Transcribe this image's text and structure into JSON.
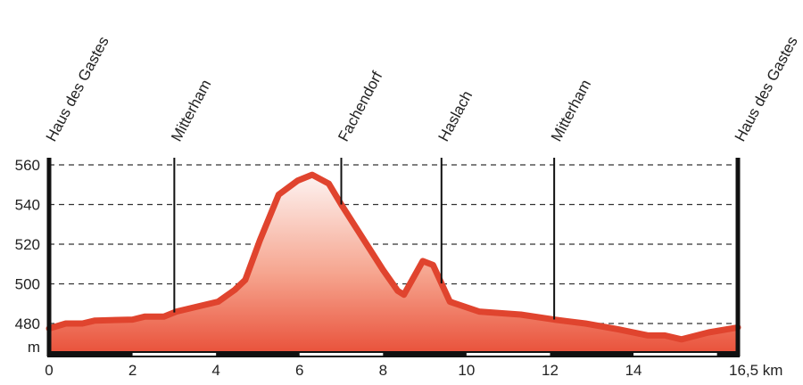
{
  "chart_data": {
    "type": "area",
    "title": "",
    "xlabel": "",
    "x_unit": "km",
    "ylabel": "m",
    "xlim": [
      0,
      16.5
    ],
    "ylim": [
      464,
      562
    ],
    "x_ticks": [
      0,
      2,
      4,
      6,
      8,
      10,
      12,
      14,
      16.5
    ],
    "x_tick_labels": [
      "0",
      "2",
      "4",
      "6",
      "8",
      "10",
      "12",
      "14",
      "16,5 km"
    ],
    "y_ticks": [
      480,
      500,
      520,
      540,
      560
    ],
    "y_tick_labels": [
      "480",
      "500",
      "520",
      "540",
      "560"
    ],
    "grid": "horizontal dashed",
    "line_color": "#e0442e",
    "fill_top_color": "#fdf3f1",
    "fill_bottom_color": "#e9513a",
    "waypoints": [
      {
        "km": 0,
        "name": "Haus des Gastes"
      },
      {
        "km": 3.0,
        "name": "Mitterham"
      },
      {
        "km": 7.0,
        "name": "Fachendorf"
      },
      {
        "km": 9.4,
        "name": "Haslach"
      },
      {
        "km": 12.1,
        "name": "Mitterham"
      },
      {
        "km": 16.5,
        "name": "Haus des Gastes"
      }
    ],
    "x": [
      0,
      0.4,
      0.8,
      1.1,
      2.0,
      2.3,
      2.75,
      3.05,
      4.05,
      4.45,
      4.7,
      5.05,
      5.5,
      5.95,
      6.3,
      6.7,
      7.0,
      8.0,
      8.35,
      8.5,
      8.95,
      9.2,
      9.6,
      10.3,
      11.3,
      12.1,
      12.85,
      13.65,
      14.35,
      14.75,
      15.15,
      15.8,
      16.5
    ],
    "y": [
      477.5,
      480,
      480,
      481.5,
      482,
      483.5,
      483.5,
      486,
      491,
      497,
      502,
      522,
      545,
      552,
      555,
      550.5,
      540,
      507,
      496.5,
      494.5,
      511.5,
      509.5,
      491,
      486,
      484.5,
      482,
      480,
      477,
      474,
      474,
      472,
      475.5,
      478
    ]
  }
}
